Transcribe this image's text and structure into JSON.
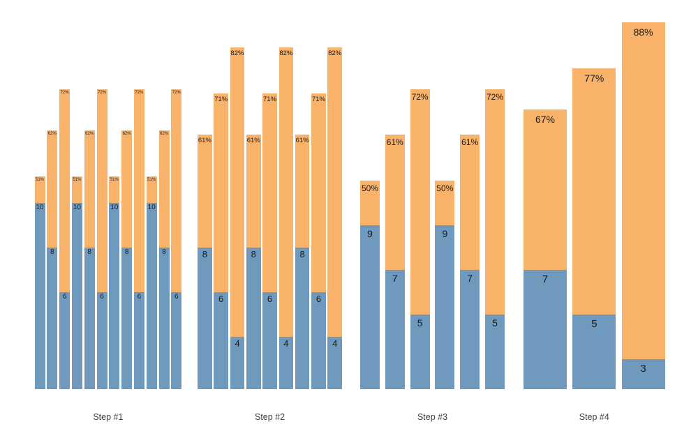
{
  "chart_data": {
    "type": "bar",
    "subtype": "grouped-stacked-columns",
    "title": "",
    "xlabel": "",
    "ylabel": "",
    "axes_visible": false,
    "gridlines": false,
    "legend": "none",
    "colors": {
      "base_segment_blue": "#7099be",
      "top_segment_orange": "#f9b269",
      "bar_label_text": "#1a1a1a",
      "group_label_text": "#404040",
      "background": "#ffffff"
    },
    "categories": [
      "Step #1",
      "Step #2",
      "Step #3",
      "Step #4"
    ],
    "groups": [
      {
        "label": "Step #1",
        "bars": [
          {
            "value": 10,
            "percent": 51,
            "value_label": "10",
            "percent_label": "51%"
          },
          {
            "value": 8,
            "percent": 62,
            "value_label": "8",
            "percent_label": "62%"
          },
          {
            "value": 6,
            "percent": 72,
            "value_label": "6",
            "percent_label": "72%"
          },
          {
            "value": 10,
            "percent": 51,
            "value_label": "10",
            "percent_label": "51%"
          },
          {
            "value": 8,
            "percent": 62,
            "value_label": "8",
            "percent_label": "62%"
          },
          {
            "value": 6,
            "percent": 72,
            "value_label": "6",
            "percent_label": "72%"
          },
          {
            "value": 10,
            "percent": 51,
            "value_label": "10",
            "percent_label": "51%"
          },
          {
            "value": 8,
            "percent": 62,
            "value_label": "8",
            "percent_label": "62%"
          },
          {
            "value": 6,
            "percent": 72,
            "value_label": "6",
            "percent_label": "72%"
          },
          {
            "value": 10,
            "percent": 51,
            "value_label": "10",
            "percent_label": "51%"
          },
          {
            "value": 8,
            "percent": 62,
            "value_label": "8",
            "percent_label": "62%"
          },
          {
            "value": 6,
            "percent": 72,
            "value_label": "6",
            "percent_label": "72%"
          }
        ]
      },
      {
        "label": "Step #2",
        "bars": [
          {
            "value": 8,
            "percent": 61,
            "value_label": "8",
            "percent_label": "61%"
          },
          {
            "value": 6,
            "percent": 71,
            "value_label": "6",
            "percent_label": "71%"
          },
          {
            "value": 4,
            "percent": 82,
            "value_label": "4",
            "percent_label": "82%"
          },
          {
            "value": 8,
            "percent": 61,
            "value_label": "8",
            "percent_label": "61%"
          },
          {
            "value": 6,
            "percent": 71,
            "value_label": "6",
            "percent_label": "71%"
          },
          {
            "value": 4,
            "percent": 82,
            "value_label": "4",
            "percent_label": "82%"
          },
          {
            "value": 8,
            "percent": 61,
            "value_label": "8",
            "percent_label": "61%"
          },
          {
            "value": 6,
            "percent": 71,
            "value_label": "6",
            "percent_label": "71%"
          },
          {
            "value": 4,
            "percent": 82,
            "value_label": "4",
            "percent_label": "82%"
          }
        ]
      },
      {
        "label": "Step #3",
        "bars": [
          {
            "value": 9,
            "percent": 50,
            "value_label": "9",
            "percent_label": "50%"
          },
          {
            "value": 7,
            "percent": 61,
            "value_label": "7",
            "percent_label": "61%"
          },
          {
            "value": 5,
            "percent": 72,
            "value_label": "5",
            "percent_label": "72%"
          },
          {
            "value": 9,
            "percent": 50,
            "value_label": "9",
            "percent_label": "50%"
          },
          {
            "value": 7,
            "percent": 61,
            "value_label": "7",
            "percent_label": "61%"
          },
          {
            "value": 5,
            "percent": 72,
            "value_label": "5",
            "percent_label": "72%"
          }
        ]
      },
      {
        "label": "Step #4",
        "bars": [
          {
            "value": 7,
            "percent": 67,
            "value_label": "7",
            "percent_label": "67%"
          },
          {
            "value": 5,
            "percent": 77,
            "value_label": "5",
            "percent_label": "77%"
          },
          {
            "value": 3,
            "percent": 88,
            "value_label": "3",
            "percent_label": "88%"
          }
        ]
      }
    ]
  }
}
